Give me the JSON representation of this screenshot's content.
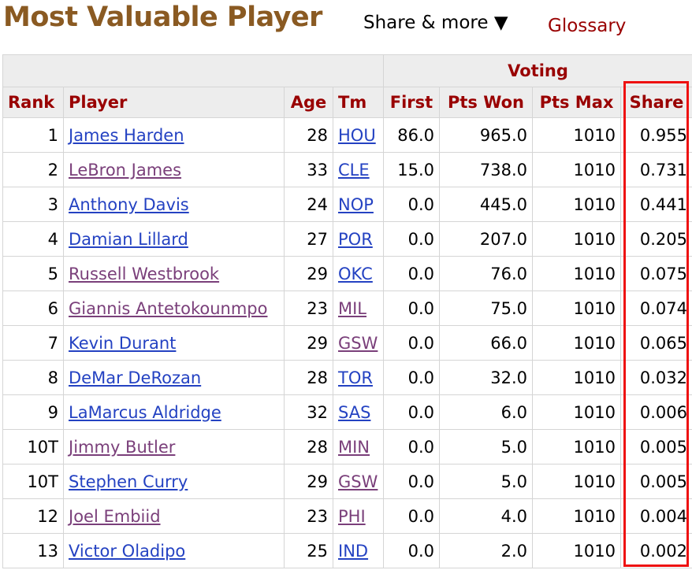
{
  "header": {
    "title": "Most Valuable Player",
    "share_more": "Share & more ▼",
    "glossary": "Glossary"
  },
  "table": {
    "over_header": "Voting",
    "columns": {
      "rank": "Rank",
      "player": "Player",
      "age": "Age",
      "team": "Tm",
      "first": "First",
      "pts_won": "Pts Won",
      "pts_max": "Pts Max",
      "share": "Share"
    },
    "rows": [
      {
        "rank": "1",
        "player": "James Harden",
        "player_visited": false,
        "age": "28",
        "team": "HOU",
        "team_visited": false,
        "first": "86.0",
        "pts_won": "965.0",
        "pts_max": "1010",
        "share": "0.955"
      },
      {
        "rank": "2",
        "player": "LeBron James",
        "player_visited": true,
        "age": "33",
        "team": "CLE",
        "team_visited": false,
        "first": "15.0",
        "pts_won": "738.0",
        "pts_max": "1010",
        "share": "0.731"
      },
      {
        "rank": "3",
        "player": "Anthony Davis",
        "player_visited": false,
        "age": "24",
        "team": "NOP",
        "team_visited": false,
        "first": "0.0",
        "pts_won": "445.0",
        "pts_max": "1010",
        "share": "0.441"
      },
      {
        "rank": "4",
        "player": "Damian Lillard",
        "player_visited": false,
        "age": "27",
        "team": "POR",
        "team_visited": false,
        "first": "0.0",
        "pts_won": "207.0",
        "pts_max": "1010",
        "share": "0.205"
      },
      {
        "rank": "5",
        "player": "Russell Westbrook",
        "player_visited": true,
        "age": "29",
        "team": "OKC",
        "team_visited": false,
        "first": "0.0",
        "pts_won": "76.0",
        "pts_max": "1010",
        "share": "0.075"
      },
      {
        "rank": "6",
        "player": "Giannis Antetokounmpo",
        "player_visited": true,
        "age": "23",
        "team": "MIL",
        "team_visited": true,
        "first": "0.0",
        "pts_won": "75.0",
        "pts_max": "1010",
        "share": "0.074"
      },
      {
        "rank": "7",
        "player": "Kevin Durant",
        "player_visited": false,
        "age": "29",
        "team": "GSW",
        "team_visited": true,
        "first": "0.0",
        "pts_won": "66.0",
        "pts_max": "1010",
        "share": "0.065"
      },
      {
        "rank": "8",
        "player": "DeMar DeRozan",
        "player_visited": false,
        "age": "28",
        "team": "TOR",
        "team_visited": false,
        "first": "0.0",
        "pts_won": "32.0",
        "pts_max": "1010",
        "share": "0.032"
      },
      {
        "rank": "9",
        "player": "LaMarcus Aldridge",
        "player_visited": false,
        "age": "32",
        "team": "SAS",
        "team_visited": false,
        "first": "0.0",
        "pts_won": "6.0",
        "pts_max": "1010",
        "share": "0.006"
      },
      {
        "rank": "10T",
        "player": "Jimmy Butler",
        "player_visited": true,
        "age": "28",
        "team": "MIN",
        "team_visited": true,
        "first": "0.0",
        "pts_won": "5.0",
        "pts_max": "1010",
        "share": "0.005"
      },
      {
        "rank": "10T",
        "player": "Stephen Curry",
        "player_visited": false,
        "age": "29",
        "team": "GSW",
        "team_visited": true,
        "first": "0.0",
        "pts_won": "5.0",
        "pts_max": "1010",
        "share": "0.005"
      },
      {
        "rank": "12",
        "player": "Joel Embiid",
        "player_visited": true,
        "age": "23",
        "team": "PHI",
        "team_visited": true,
        "first": "0.0",
        "pts_won": "4.0",
        "pts_max": "1010",
        "share": "0.004"
      },
      {
        "rank": "13",
        "player": "Victor Oladipo",
        "player_visited": false,
        "age": "25",
        "team": "IND",
        "team_visited": false,
        "first": "0.0",
        "pts_won": "2.0",
        "pts_max": "1010",
        "share": "0.002"
      }
    ]
  },
  "colors": {
    "title": "#8a5a22",
    "header_text": "#990000",
    "link": "#2442c2",
    "link_visited": "#7a3f7a",
    "highlight_box": "#ee1111"
  }
}
